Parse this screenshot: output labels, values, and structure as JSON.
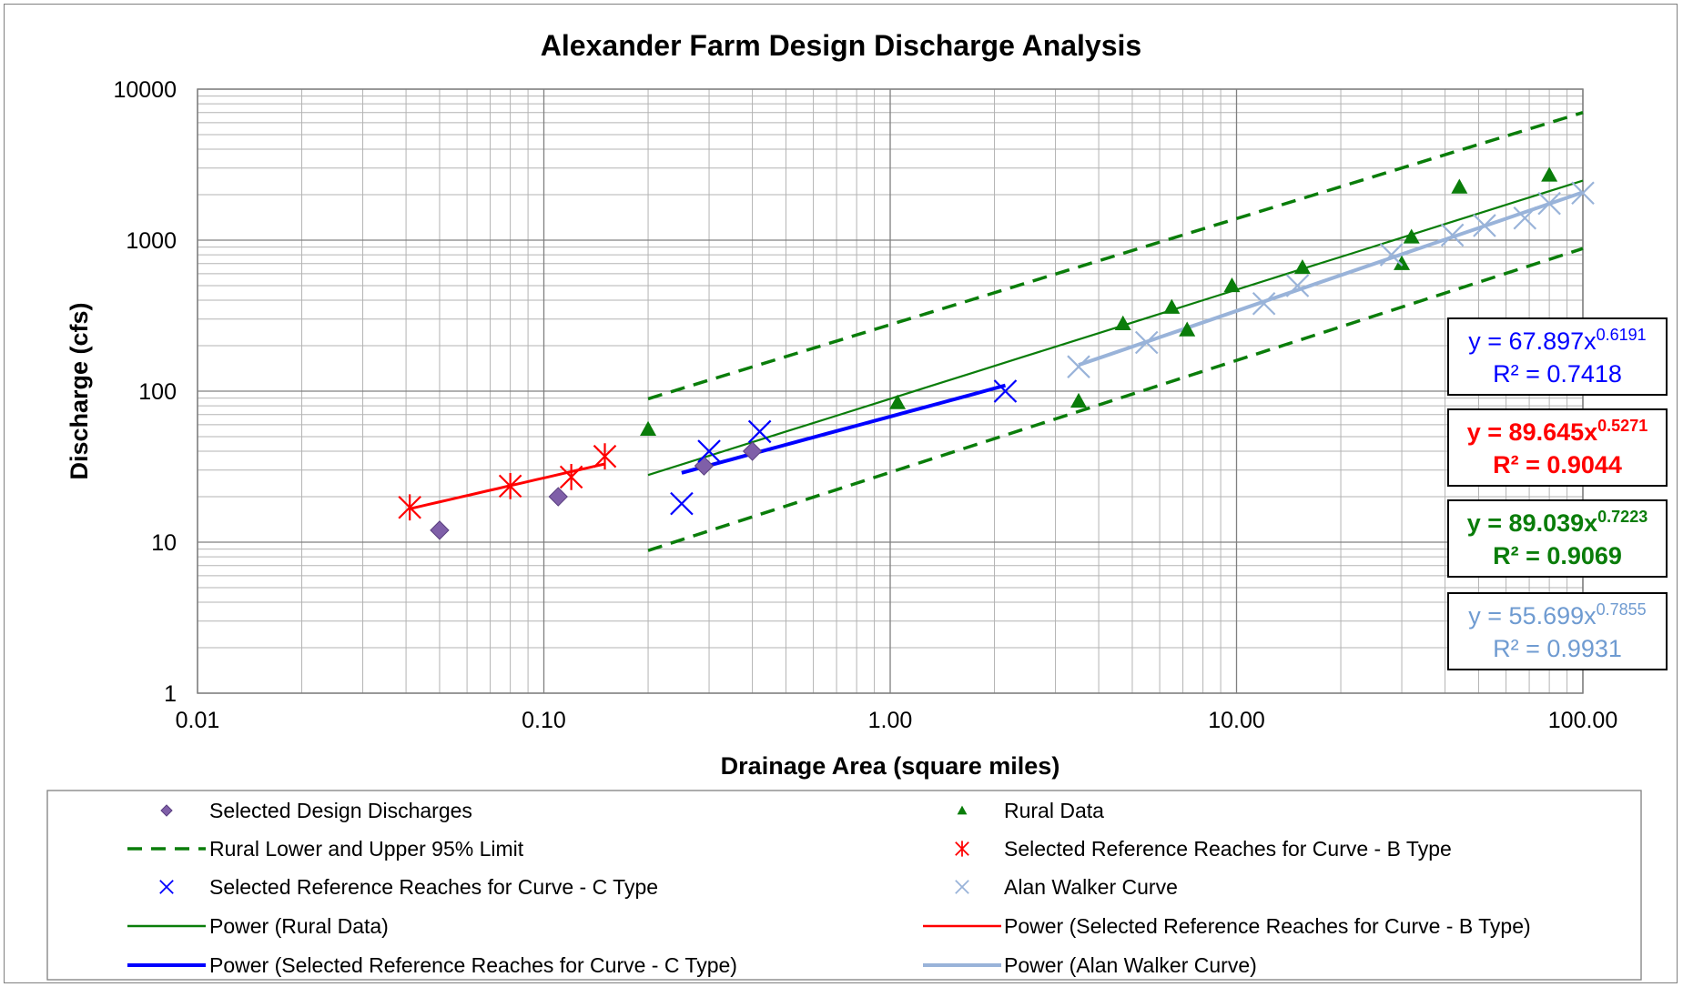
{
  "chart_data": {
    "type": "scatter",
    "title": "Alexander Farm Design Discharge Analysis",
    "xlabel": "Drainage Area (square miles)",
    "ylabel": "Discharge (cfs)",
    "x_scale": "log",
    "y_scale": "log",
    "xlim": [
      0.01,
      100
    ],
    "ylim": [
      1,
      10000
    ],
    "x_ticks": [
      "0.01",
      "0.10",
      "1.00",
      "10.00",
      "100.00"
    ],
    "y_ticks": [
      "1",
      "10",
      "100",
      "1000",
      "10000"
    ],
    "grid": true,
    "legend_position": "bottom",
    "series": [
      {
        "name": "Selected Design Discharges",
        "marker": "diamond",
        "color": "#7f5fa8",
        "points": [
          [
            0.05,
            12
          ],
          [
            0.11,
            20
          ],
          [
            0.29,
            32
          ],
          [
            0.4,
            40
          ]
        ]
      },
      {
        "name": "Rural Data",
        "marker": "triangle",
        "color": "#0a7d0a",
        "points": [
          [
            0.2,
            56
          ],
          [
            1.05,
            84
          ],
          [
            3.5,
            86
          ],
          [
            4.7,
            280
          ],
          [
            6.5,
            360
          ],
          [
            7.2,
            255
          ],
          [
            9.7,
            500
          ],
          [
            15.5,
            660
          ],
          [
            30,
            700
          ],
          [
            32,
            1050
          ],
          [
            44,
            2250
          ],
          [
            80,
            2700
          ]
        ]
      },
      {
        "name": "Rural Lower and Upper 95% Limit",
        "style": "dashed-line",
        "color": "#0a7d0a",
        "lines": [
          [
            [
              0.2,
              89
            ],
            [
              100,
              7000
            ]
          ],
          [
            [
              0.2,
              8.8
            ],
            [
              100,
              880
            ]
          ]
        ]
      },
      {
        "name": "Selected Reference Reaches for Curve - B Type",
        "marker": "star",
        "color": "#ff0000",
        "points": [
          [
            0.041,
            17
          ],
          [
            0.08,
            23.5
          ],
          [
            0.12,
            27
          ],
          [
            0.15,
            37
          ]
        ]
      },
      {
        "name": "Selected Reference Reaches for Curve - C Type",
        "marker": "x",
        "color": "#0000ff",
        "points": [
          [
            0.25,
            18
          ],
          [
            0.3,
            40
          ],
          [
            0.42,
            54
          ],
          [
            2.15,
            100
          ]
        ]
      },
      {
        "name": "Alan Walker Curve",
        "marker": "x",
        "color": "#99b3d9",
        "points": [
          [
            3.5,
            145
          ],
          [
            5.5,
            210
          ],
          [
            12,
            380
          ],
          [
            15,
            500
          ],
          [
            28,
            800
          ],
          [
            42,
            1080
          ],
          [
            52,
            1250
          ],
          [
            68,
            1400
          ],
          [
            80,
            1750
          ],
          [
            100,
            2050
          ]
        ]
      },
      {
        "name": "Power (Rural Data)",
        "style": "line",
        "color": "#0a7d0a",
        "fit": {
          "a": 89.039,
          "b": 0.7223
        },
        "x_range": [
          0.2,
          100
        ]
      },
      {
        "name": "Power (Selected Reference Reaches for Curve - B Type)",
        "style": "line",
        "color": "#ff0000",
        "fit": {
          "a": 89.645,
          "b": 0.5271
        },
        "x_range": [
          0.041,
          0.15
        ]
      },
      {
        "name": "Power (Selected Reference Reaches for Curve - C Type)",
        "style": "line",
        "color": "#0000ff",
        "fit": {
          "a": 67.897,
          "b": 0.6191
        },
        "x_range": [
          0.25,
          2.15
        ]
      },
      {
        "name": "Power (Alan Walker Curve)",
        "style": "line",
        "color": "#99b3d9",
        "fit": {
          "a": 55.699,
          "b": 0.7855
        },
        "x_range": [
          3.5,
          100
        ]
      }
    ],
    "equations": [
      {
        "eq": "y = 67.897x",
        "exp": "0.6191",
        "r2": "R² = 0.7418",
        "color": "#0000ff",
        "bold": false
      },
      {
        "eq": "y = 89.645x",
        "exp": "0.5271",
        "r2": "R² = 0.9044",
        "color": "#ff0000",
        "bold": true
      },
      {
        "eq": "y = 89.039x",
        "exp": "0.7223",
        "r2": "R² = 0.9069",
        "color": "#0a7d0a",
        "bold": true
      },
      {
        "eq": "y = 55.699x",
        "exp": "0.7855",
        "r2": "R² = 0.9931",
        "color": "#6f9bd1",
        "bold": false
      }
    ],
    "legend": [
      {
        "label": "Selected Design Discharges",
        "symbol": "diamond",
        "color": "#7f5fa8"
      },
      {
        "label": "Rural Data",
        "symbol": "triangle",
        "color": "#0a7d0a"
      },
      {
        "label": "Rural Lower and Upper 95% Limit",
        "symbol": "dash",
        "color": "#0a7d0a"
      },
      {
        "label": "Selected Reference Reaches for Curve - B Type",
        "symbol": "star",
        "color": "#ff0000"
      },
      {
        "label": "Selected Reference Reaches for Curve - C Type",
        "symbol": "x",
        "color": "#0000ff"
      },
      {
        "label": "Alan Walker Curve",
        "symbol": "x",
        "color": "#99b3d9"
      },
      {
        "label": "Power (Rural Data)",
        "symbol": "line",
        "color": "#0a7d0a"
      },
      {
        "label": "Power (Selected Reference Reaches for Curve - B Type)",
        "symbol": "line",
        "color": "#ff0000"
      },
      {
        "label": "Power (Selected Reference Reaches for Curve - C Type)",
        "symbol": "thickline",
        "color": "#0000ff"
      },
      {
        "label": "Power (Alan Walker Curve)",
        "symbol": "thickline",
        "color": "#99b3d9"
      }
    ]
  }
}
